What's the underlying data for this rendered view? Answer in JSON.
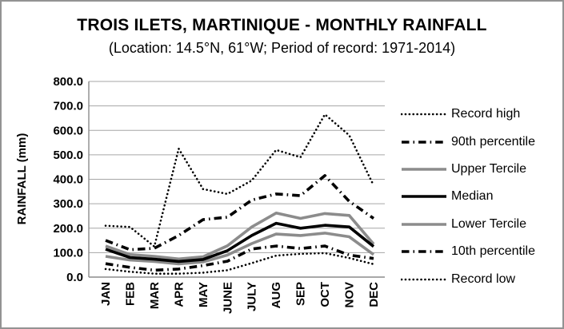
{
  "title": "TROIS ILETS, MARTINIQUE - MONTHLY RAINFALL",
  "subtitle": "(Location: 14.5°N, 61°W; Period of record: 1971-2014)",
  "chart_data": {
    "type": "line",
    "categories": [
      "JAN",
      "FEB",
      "MAR",
      "APR",
      "MAY",
      "JUNE",
      "JULY",
      "AUG",
      "SEP",
      "OCT",
      "NOV",
      "DEC"
    ],
    "series": [
      {
        "name": "Record high",
        "style": "dotted",
        "color": "#000000",
        "width": 2.6,
        "values": [
          210,
          205,
          125,
          525,
          360,
          340,
          395,
          520,
          490,
          665,
          580,
          375
        ]
      },
      {
        "name": "90th percentile",
        "style": "dashdot",
        "color": "#000000",
        "width": 3.6,
        "values": [
          150,
          112,
          118,
          170,
          235,
          245,
          315,
          340,
          333,
          415,
          310,
          240
        ]
      },
      {
        "name": "Upper Tercile",
        "style": "solid",
        "color": "#8c8c8c",
        "width": 3.6,
        "values": [
          127,
          92,
          85,
          74,
          83,
          128,
          205,
          262,
          240,
          260,
          252,
          135
        ]
      },
      {
        "name": "Median",
        "style": "solid",
        "color": "#000000",
        "width": 3.6,
        "values": [
          114,
          80,
          73,
          64,
          72,
          108,
          170,
          220,
          200,
          212,
          205,
          125
        ]
      },
      {
        "name": "Lower Tercile",
        "style": "solid",
        "color": "#8c8c8c",
        "width": 3.6,
        "values": [
          85,
          70,
          64,
          54,
          62,
          90,
          137,
          176,
          170,
          180,
          165,
          92
        ]
      },
      {
        "name": "10th percentile",
        "style": "dashdot",
        "color": "#000000",
        "width": 3.6,
        "values": [
          55,
          40,
          28,
          33,
          47,
          65,
          115,
          127,
          117,
          127,
          90,
          76
        ]
      },
      {
        "name": "Record low",
        "style": "dotted",
        "color": "#000000",
        "width": 2.6,
        "values": [
          33,
          22,
          14,
          14,
          18,
          28,
          57,
          88,
          95,
          98,
          78,
          53
        ]
      }
    ],
    "ylabel": "RAINFALL (mm)",
    "xlabel": "",
    "ylim": [
      0,
      800
    ],
    "ytick_step": 100,
    "ytick_labels": [
      "0.0",
      "100.0",
      "200.0",
      "300.0",
      "400.0",
      "500.0",
      "600.0",
      "700.0",
      "800.0"
    ],
    "grid": true,
    "gridline_color": "#a6a6a6",
    "axis_line_color": "#8c8c8c",
    "legend_position": "right"
  }
}
